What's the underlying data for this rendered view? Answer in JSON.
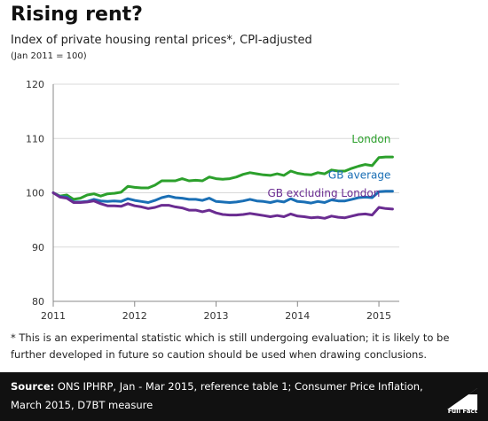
{
  "title": "Rising rent?",
  "subtitle": "Index of private housing rental prices*, CPI-adjusted",
  "subtitle_note": "(Jan 2011 = 100)",
  "footnote": "* This is an experimental statistic which is still undergoing evaluation; it is likely to be further developed in future so caution should be used when drawing conclusions.",
  "source_label": "Source:",
  "source_text": "ONS IPHRP, Jan - Mar 2015, reference table 1; Consumer Price Inflation, March 2015, D7BT measure",
  "logo_text": "Full Fact",
  "colors": {
    "london": "#2ca02c",
    "gb_average": "#1a6fb5",
    "gb_excl_london": "#6a2c91",
    "axis": "#888888",
    "grid": "#d9d9d9"
  },
  "chart_data": {
    "type": "line",
    "title": "Rising rent?",
    "ylabel": "",
    "xlabel": "",
    "xlim": [
      2011,
      2015.25
    ],
    "ylim": [
      80,
      120
    ],
    "yticks": [
      80,
      90,
      100,
      110,
      120
    ],
    "xticks": [
      2011,
      2012,
      2013,
      2014,
      2015
    ],
    "grid": "horizontal",
    "x": [
      2011,
      2011.083,
      2011.167,
      2011.25,
      2011.333,
      2011.417,
      2011.5,
      2011.583,
      2011.667,
      2011.75,
      2011.833,
      2011.917,
      2012,
      2012.083,
      2012.167,
      2012.25,
      2012.333,
      2012.417,
      2012.5,
      2012.583,
      2012.667,
      2012.75,
      2012.833,
      2012.917,
      2013,
      2013.083,
      2013.167,
      2013.25,
      2013.333,
      2013.417,
      2013.5,
      2013.583,
      2013.667,
      2013.75,
      2013.833,
      2013.917,
      2014,
      2014.083,
      2014.167,
      2014.25,
      2014.333,
      2014.417,
      2014.5,
      2014.583,
      2014.667,
      2014.75,
      2014.833,
      2014.917,
      2015,
      2015.083,
      2015.167
    ],
    "series": [
      {
        "name": "London",
        "color_key": "london",
        "values": [
          100,
          99.4,
          99.6,
          98.8,
          99.0,
          99.6,
          99.8,
          99.4,
          99.8,
          99.9,
          100.1,
          101.2,
          101.0,
          100.9,
          100.9,
          101.4,
          102.2,
          102.2,
          102.2,
          102.6,
          102.2,
          102.3,
          102.2,
          102.9,
          102.6,
          102.5,
          102.6,
          102.9,
          103.4,
          103.7,
          103.5,
          103.3,
          103.2,
          103.5,
          103.2,
          104.0,
          103.6,
          103.4,
          103.3,
          103.7,
          103.5,
          104.2,
          104.0,
          104.0,
          104.5,
          104.9,
          105.2,
          105.0,
          106.5,
          106.6,
          106.6
        ]
      },
      {
        "name": "GB average",
        "color_key": "gb_average",
        "values": [
          100,
          99.3,
          99.2,
          98.3,
          98.3,
          98.4,
          98.8,
          98.5,
          98.4,
          98.5,
          98.4,
          98.9,
          98.6,
          98.4,
          98.2,
          98.6,
          99.1,
          99.4,
          99.1,
          99.0,
          98.8,
          98.8,
          98.6,
          99.0,
          98.4,
          98.3,
          98.2,
          98.3,
          98.5,
          98.8,
          98.5,
          98.4,
          98.2,
          98.5,
          98.3,
          98.9,
          98.4,
          98.3,
          98.1,
          98.4,
          98.2,
          98.7,
          98.5,
          98.5,
          98.8,
          99.1,
          99.2,
          99.1,
          100.2,
          100.3,
          100.3
        ]
      },
      {
        "name": "GB excluding London",
        "color_key": "gb_excl_london",
        "values": [
          100,
          99.2,
          99.0,
          98.2,
          98.2,
          98.3,
          98.5,
          98.0,
          97.6,
          97.6,
          97.5,
          98.0,
          97.6,
          97.4,
          97.1,
          97.3,
          97.7,
          97.7,
          97.4,
          97.2,
          96.8,
          96.8,
          96.5,
          96.8,
          96.3,
          96.0,
          95.9,
          95.9,
          96.0,
          96.2,
          96.0,
          95.8,
          95.6,
          95.8,
          95.6,
          96.1,
          95.7,
          95.6,
          95.4,
          95.5,
          95.3,
          95.7,
          95.5,
          95.4,
          95.7,
          96.0,
          96.1,
          95.9,
          97.3,
          97.1,
          97.0
        ]
      }
    ],
    "annotations": [
      {
        "text": "London",
        "series": "London"
      },
      {
        "text": "GB average",
        "series": "GB average"
      },
      {
        "text": "GB excluding London",
        "series": "GB excluding London"
      }
    ]
  }
}
